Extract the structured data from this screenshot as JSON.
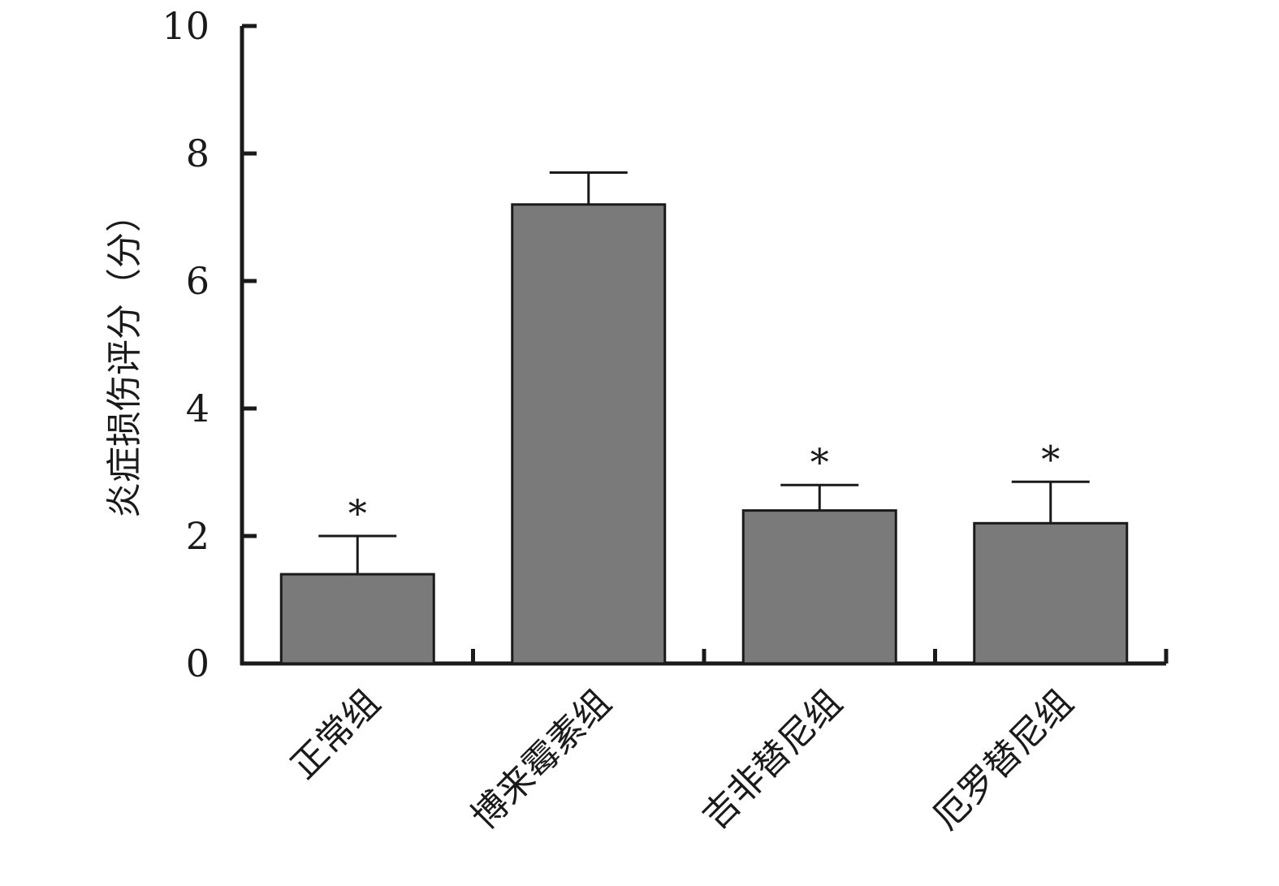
{
  "chart_data": {
    "type": "bar",
    "categories": [
      "正常组",
      "博来霉素组",
      "吉非替尼组",
      "厄罗替尼组"
    ],
    "values": [
      1.4,
      7.2,
      2.4,
      2.2
    ],
    "errors": [
      0.6,
      0.5,
      0.4,
      0.65
    ],
    "significance": [
      "*",
      "",
      "*",
      "*"
    ],
    "xlabel": "",
    "ylabel": "炎症损伤评分（分）",
    "ylim": [
      0,
      10
    ],
    "yticks": [
      "0",
      "2",
      "4",
      "6",
      "8",
      "10"
    ],
    "grid": false,
    "colors": {
      "bar": "#7b7a7b",
      "axis": "#1a1a1a"
    }
  }
}
